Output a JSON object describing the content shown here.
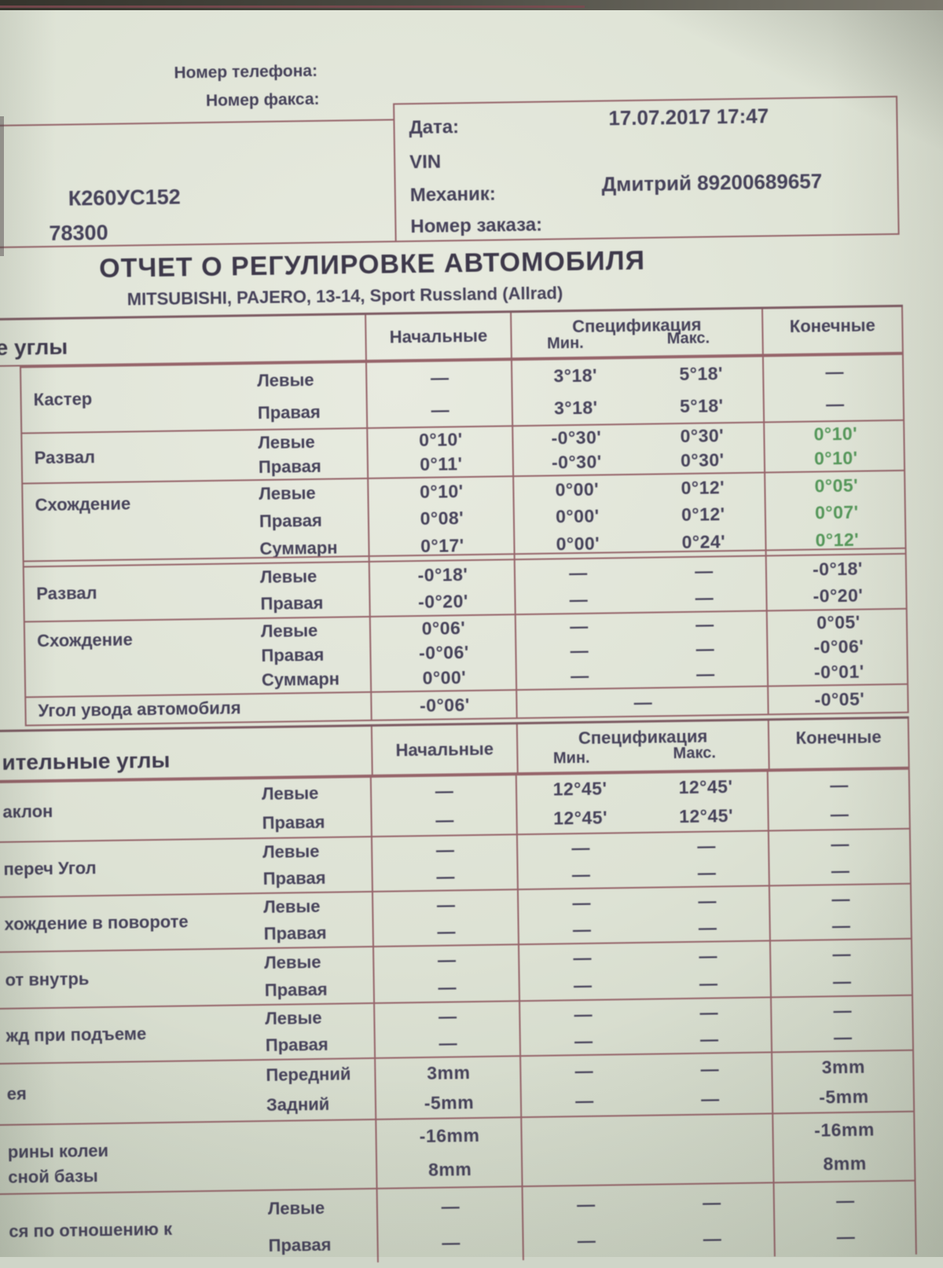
{
  "header": {
    "phone_label": "Номер телефона:",
    "fax_label": "Номер факса:",
    "left_box": {
      "plate": "К260УС152",
      "number": "78300"
    },
    "info_box": {
      "date_label": "Дата:",
      "date_value": "17.07.2017 17:47",
      "vin_label": "VIN",
      "mechanic_label": "Механик:",
      "mechanic_value": "Дмитрий 89200689657",
      "order_label": "Номер заказа:"
    }
  },
  "title": "ОТЧЕТ О РЕГУЛИРОВКЕ АВТОМОБИЛЯ",
  "subtitle": "MITSUBISHI, PAJERO, 13-14, Sport Russland (Allrad)",
  "col_headers": {
    "initial": "Начальные",
    "spec": "Спецификация",
    "min": "Мин.",
    "max": "Макс.",
    "final": "Конечные"
  },
  "section1": {
    "label": "е углы",
    "groups": [
      {
        "label": "Кастер",
        "rows": [
          {
            "side": "Левые",
            "initial": "—",
            "min": "3°18'",
            "max": "5°18'",
            "final": "—"
          },
          {
            "side": "Правая",
            "initial": "—",
            "min": "3°18'",
            "max": "5°18'",
            "final": "—"
          }
        ]
      },
      {
        "label": "Развал",
        "rows": [
          {
            "side": "Левые",
            "initial": "0°10'",
            "min": "-0°30'",
            "max": "0°30'",
            "final": "0°10'",
            "green": true
          },
          {
            "side": "Правая",
            "initial": "0°11'",
            "min": "-0°30'",
            "max": "0°30'",
            "final": "0°10'",
            "green": true
          }
        ]
      },
      {
        "label": "Схождение",
        "rows": [
          {
            "side": "Левые",
            "initial": "0°10'",
            "min": "0°00'",
            "max": "0°12'",
            "final": "0°05'",
            "green": true
          },
          {
            "side": "Правая",
            "initial": "0°08'",
            "min": "0°00'",
            "max": "0°12'",
            "final": "0°07'",
            "green": true
          },
          {
            "side": "Суммарн",
            "initial": "0°17'",
            "min": "0°00'",
            "max": "0°24'",
            "final": "0°12'",
            "green": true
          }
        ]
      },
      {
        "label": "Развал",
        "rows": [
          {
            "side": "Левые",
            "initial": "-0°18'",
            "min": "—",
            "max": "—",
            "final": "-0°18'"
          },
          {
            "side": "Правая",
            "initial": "-0°20'",
            "min": "—",
            "max": "—",
            "final": "-0°20'"
          }
        ]
      },
      {
        "label": "Схождение",
        "rows": [
          {
            "side": "Левые",
            "initial": "0°06'",
            "min": "—",
            "max": "—",
            "final": "0°05'"
          },
          {
            "side": "Правая",
            "initial": "-0°06'",
            "min": "—",
            "max": "—",
            "final": "-0°06'"
          },
          {
            "side": "Суммарн",
            "initial": "0°00'",
            "min": "—",
            "max": "—",
            "final": "-0°01'"
          }
        ]
      },
      {
        "label": "Угол увода автомобиля",
        "rows": [
          {
            "side": "",
            "initial": "-0°06'",
            "spec": "—",
            "final": "-0°05'"
          }
        ]
      }
    ]
  },
  "section2": {
    "label": "ительные углы",
    "groups": [
      {
        "label": "аклон",
        "rows": [
          {
            "side": "Левые",
            "initial": "—",
            "min": "12°45'",
            "max": "12°45'",
            "final": "—"
          },
          {
            "side": "Правая",
            "initial": "—",
            "min": "12°45'",
            "max": "12°45'",
            "final": "—"
          }
        ]
      },
      {
        "label": "переч Угол",
        "rows": [
          {
            "side": "Левые",
            "initial": "—",
            "min": "—",
            "max": "—",
            "final": "—"
          },
          {
            "side": "Правая",
            "initial": "—",
            "min": "—",
            "max": "—",
            "final": "—"
          }
        ]
      },
      {
        "label": "хождение в повороте",
        "rows": [
          {
            "side": "Левые",
            "initial": "—",
            "min": "—",
            "max": "—",
            "final": "—"
          },
          {
            "side": "Правая",
            "initial": "—",
            "min": "—",
            "max": "—",
            "final": "—"
          }
        ]
      },
      {
        "label": "от внутрь",
        "rows": [
          {
            "side": "Левые",
            "initial": "—",
            "min": "—",
            "max": "—",
            "final": "—"
          },
          {
            "side": "Правая",
            "initial": "—",
            "min": "—",
            "max": "—",
            "final": "—"
          }
        ]
      },
      {
        "label": "жд при подъеме",
        "rows": [
          {
            "side": "Левые",
            "initial": "—",
            "min": "—",
            "max": "—",
            "final": "—"
          },
          {
            "side": "Правая",
            "initial": "—",
            "min": "—",
            "max": "—",
            "final": "—"
          }
        ]
      },
      {
        "label": "ея",
        "rows": [
          {
            "side": "Передний",
            "initial": "3mm",
            "min": "—",
            "max": "—",
            "final": "3mm"
          },
          {
            "side": "Задний",
            "initial": "-5mm",
            "min": "—",
            "max": "—",
            "final": "-5mm"
          }
        ]
      },
      {
        "label": "рины колеи",
        "label2": "сной базы",
        "rows": [
          {
            "side": "",
            "initial": "-16mm",
            "min": "",
            "max": "",
            "final": "-16mm"
          },
          {
            "side": "",
            "initial": "8mm",
            "min": "",
            "max": "",
            "final": "8mm"
          }
        ]
      },
      {
        "label": "ся по отношению к",
        "rows": [
          {
            "side": "Левые",
            "initial": "—",
            "min": "—",
            "max": "—",
            "final": "—"
          },
          {
            "side": "Правая",
            "initial": "—",
            "min": "—",
            "max": "—",
            "final": "—"
          }
        ]
      }
    ]
  },
  "colors": {
    "paper": "#dde2d6",
    "table_line": "#96646a",
    "ink": "#46425a",
    "adjusted_value_green": "#55975a"
  }
}
